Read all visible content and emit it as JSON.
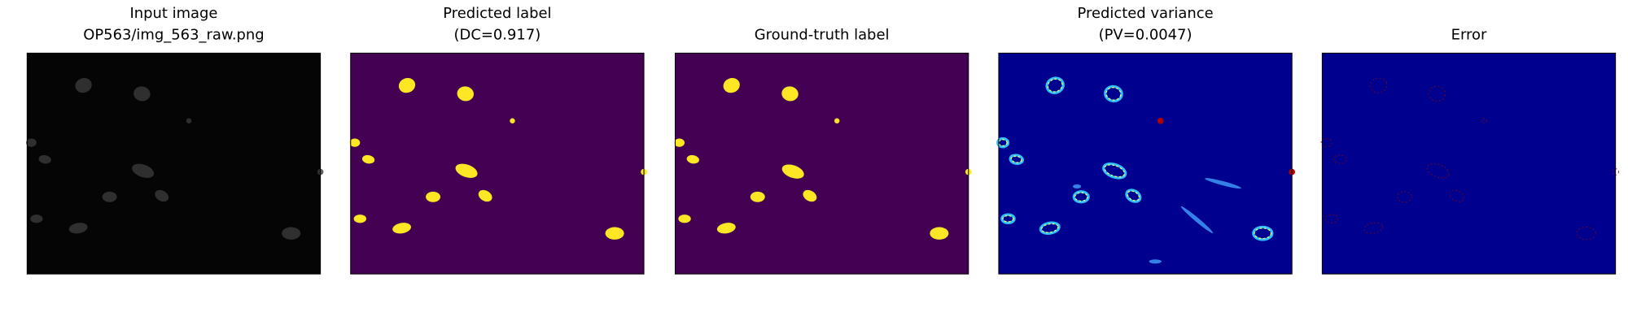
{
  "panels": [
    {
      "title": [
        "Input image",
        "OP563/img_563_raw.png"
      ]
    },
    {
      "title": [
        "Predicted label",
        "(DC=0.917)"
      ]
    },
    {
      "title": [
        "Ground-truth label"
      ]
    },
    {
      "title": [
        "Predicted variance",
        "(PV=0.0047)"
      ]
    },
    {
      "title": [
        "Error"
      ]
    }
  ]
}
